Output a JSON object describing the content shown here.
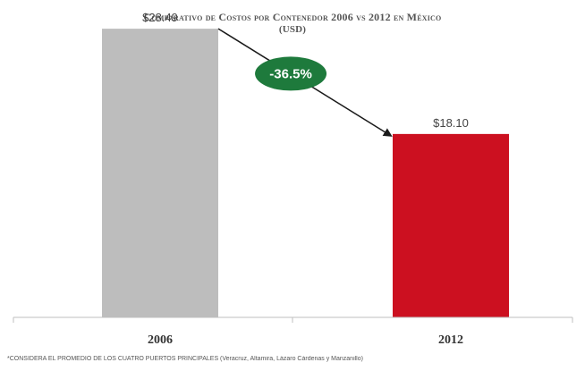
{
  "chart_data": {
    "type": "bar",
    "title": "Comparativo de Costos por Contenedor 2006 vs 2012 en México",
    "subtitle": "(USD)",
    "categories": [
      "2006",
      "2012"
    ],
    "values": [
      28.49,
      18.1
    ],
    "value_labels": [
      "$28.49",
      "$18.10"
    ],
    "colors": [
      "#bdbdbd",
      "#cc1020"
    ],
    "ylim": [
      0,
      30
    ],
    "grid": false,
    "annotation": {
      "text": "-36.5%",
      "color": "#1e7a3c",
      "arrow_from": "2006",
      "arrow_to": "2012"
    },
    "footnote": "*CONSIDERA EL PROMEDIO DE LOS CUATRO PUERTOS PRINCIPALES (Veracruz, Altamira, Lázaro Cárdenas y Manzanillo)"
  }
}
